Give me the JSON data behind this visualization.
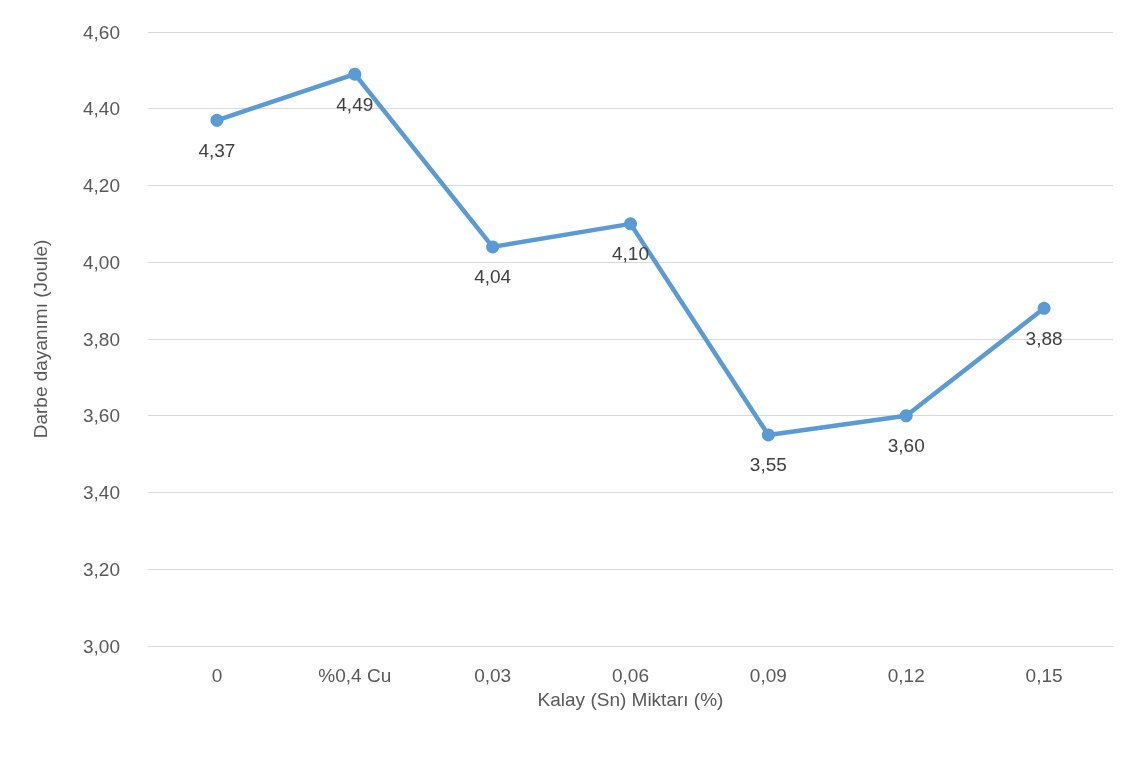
{
  "chart_data": {
    "type": "line",
    "xlabel": "Kalay (Sn) Miktarı (%)",
    "ylabel": "Darbe dayanımı (Joule)",
    "categories": [
      "0",
      "%0,4 Cu",
      "0,03",
      "0,06",
      "0,09",
      "0,12",
      "0,15"
    ],
    "series": [
      {
        "color": "#5b9bd5",
        "values": [
          4.37,
          4.49,
          4.04,
          4.1,
          3.55,
          3.6,
          3.88
        ],
        "value_labels": [
          "4,37",
          "4,49",
          "4,04",
          "4,10",
          "3,55",
          "3,60",
          "3,88"
        ]
      }
    ],
    "ylim": [
      3.0,
      4.6
    ],
    "yticks": [
      {
        "value": 3.0,
        "label": "3,00"
      },
      {
        "value": 3.2,
        "label": "3,20"
      },
      {
        "value": 3.4,
        "label": "3,40"
      },
      {
        "value": 3.6,
        "label": "3,60"
      },
      {
        "value": 3.8,
        "label": "3,80"
      },
      {
        "value": 4.0,
        "label": "4,00"
      },
      {
        "value": 4.2,
        "label": "4,20"
      },
      {
        "value": 4.4,
        "label": "4,40"
      },
      {
        "value": 4.6,
        "label": "4,60"
      }
    ],
    "grid": "y",
    "marker": "circle",
    "line_style": "solid"
  }
}
